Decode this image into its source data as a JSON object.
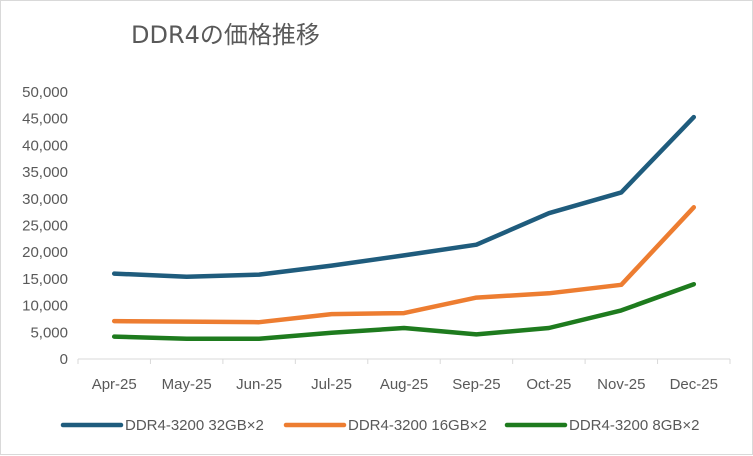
{
  "chart_data": {
    "type": "line",
    "title": "DDR4の価格推移",
    "xlabel": "",
    "ylabel": "",
    "categories": [
      "Apr-25",
      "May-25",
      "Jun-25",
      "Jul-25",
      "Aug-25",
      "Sep-25",
      "Oct-25",
      "Nov-25",
      "Dec-25"
    ],
    "ylim": [
      0,
      50000
    ],
    "yticks": [
      "0",
      "5,000",
      "10,000",
      "15,000",
      "20,000",
      "25,000",
      "30,000",
      "35,000",
      "40,000",
      "45,000",
      "50,000"
    ],
    "grid": false,
    "legend_position": "bottom",
    "series": [
      {
        "name": "DDR4-3200 32GB×2",
        "color": "#1f5c7d",
        "values": [
          16000,
          15400,
          15800,
          17500,
          19400,
          21400,
          27300,
          31200,
          45300
        ]
      },
      {
        "name": "DDR4-3200 16GB×2",
        "color": "#ed7d31",
        "values": [
          7100,
          7000,
          6900,
          8400,
          8600,
          11500,
          12300,
          13900,
          28400
        ]
      },
      {
        "name": "DDR4-3200 8GB×2",
        "color": "#1e7b1e",
        "values": [
          4200,
          3800,
          3800,
          4900,
          5800,
          4600,
          5800,
          9100,
          14000
        ]
      }
    ]
  }
}
